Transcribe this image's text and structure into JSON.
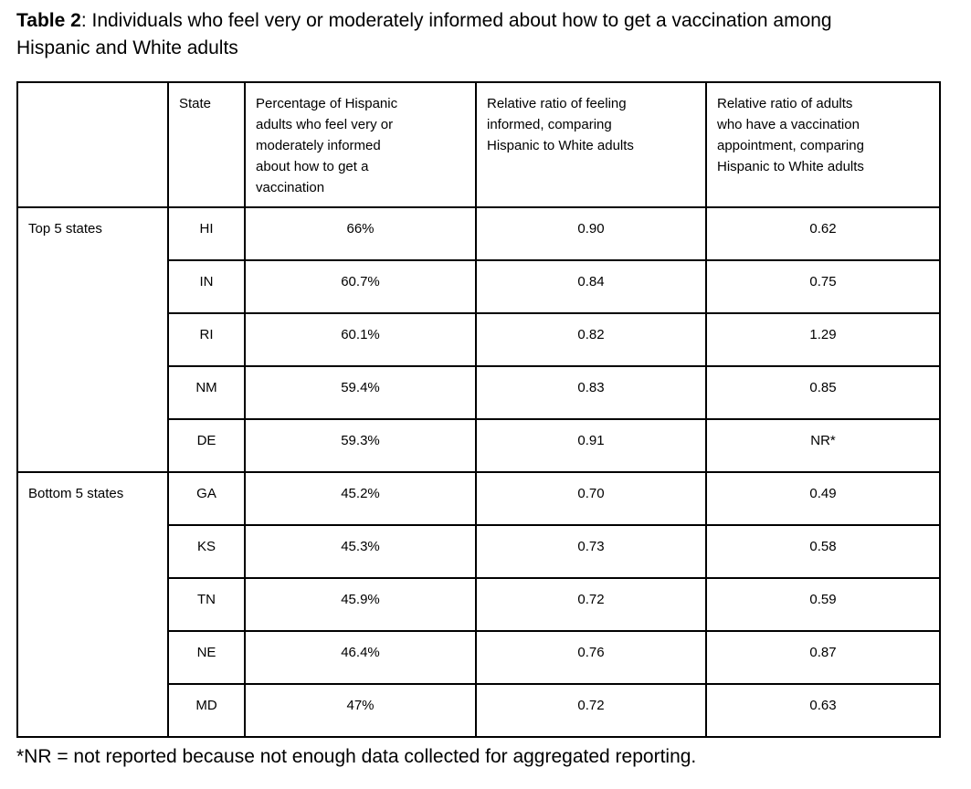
{
  "title": {
    "bold": "Table 2",
    "rest": ": Individuals who feel very or moderately informed about how to get a vaccination among Hispanic and White adults"
  },
  "table": {
    "headers": {
      "corner": "",
      "state": "State",
      "percentage": "Percentage of Hispanic\nadults who feel very or\nmoderately informed\nabout how to get a\nvaccination",
      "ratio_informed": "Relative ratio of feeling\ninformed, comparing\nHispanic to White adults",
      "ratio_appointment": "Relative ratio of adults\nwho have a vaccination\nappointment, comparing\nHispanic to White adults"
    },
    "groups": [
      {
        "label": "Top 5 states",
        "rows": [
          {
            "state": "HI",
            "percentage": "66%",
            "ratio_informed": "0.90",
            "ratio_appointment": "0.62"
          },
          {
            "state": "IN",
            "percentage": "60.7%",
            "ratio_informed": "0.84",
            "ratio_appointment": "0.75"
          },
          {
            "state": "RI",
            "percentage": "60.1%",
            "ratio_informed": "0.82",
            "ratio_appointment": "1.29"
          },
          {
            "state": "NM",
            "percentage": "59.4%",
            "ratio_informed": "0.83",
            "ratio_appointment": "0.85"
          },
          {
            "state": "DE",
            "percentage": "59.3%",
            "ratio_informed": "0.91",
            "ratio_appointment": "NR*"
          }
        ]
      },
      {
        "label": "Bottom 5 states",
        "rows": [
          {
            "state": "GA",
            "percentage": "45.2%",
            "ratio_informed": "0.70",
            "ratio_appointment": "0.49"
          },
          {
            "state": "KS",
            "percentage": "45.3%",
            "ratio_informed": "0.73",
            "ratio_appointment": "0.58"
          },
          {
            "state": "TN",
            "percentage": "45.9%",
            "ratio_informed": "0.72",
            "ratio_appointment": "0.59"
          },
          {
            "state": "NE",
            "percentage": "46.4%",
            "ratio_informed": "0.76",
            "ratio_appointment": "0.87"
          },
          {
            "state": "MD",
            "percentage": "47%",
            "ratio_informed": "0.72",
            "ratio_appointment": "0.63"
          }
        ]
      }
    ]
  },
  "footnote": "*NR = not reported because not enough data collected for aggregated reporting.",
  "colors": {
    "text": "#000000",
    "border": "#000000",
    "background": "#ffffff"
  }
}
